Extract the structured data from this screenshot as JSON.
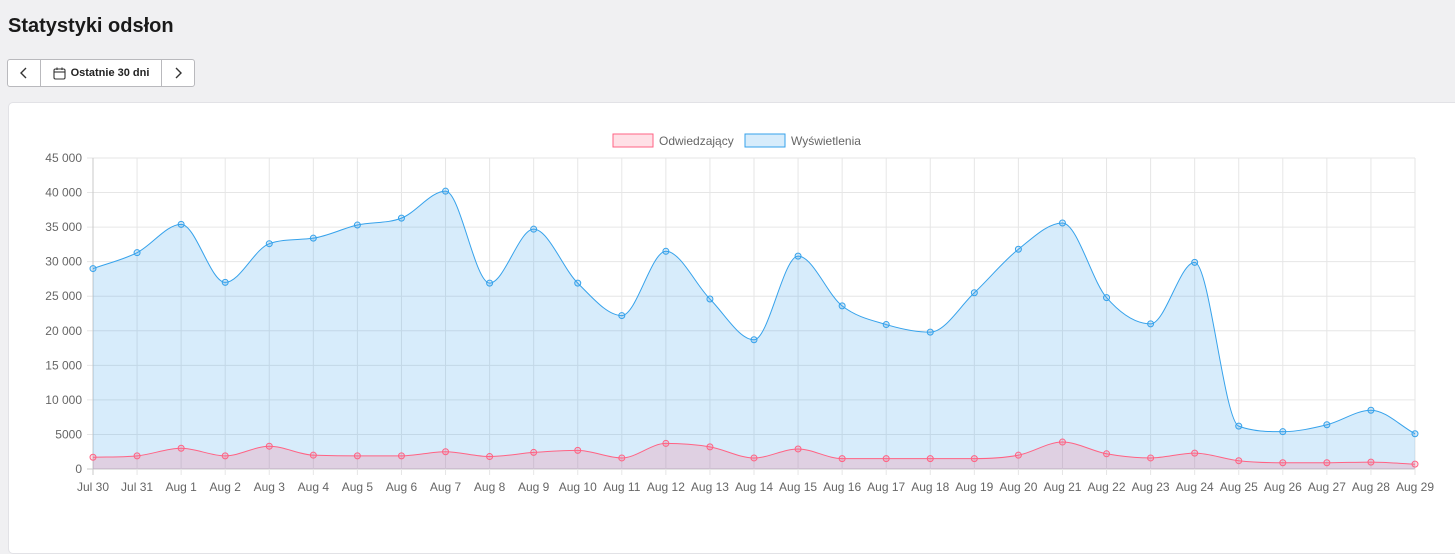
{
  "header": {
    "title": "Statystyki odsłon"
  },
  "range": {
    "label": "Ostatnie 30 dni",
    "prev_icon": "chevron-left-icon",
    "next_icon": "chevron-right-icon",
    "calendar_icon": "calendar-icon"
  },
  "chart_data": {
    "type": "line",
    "title": "",
    "xlabel": "",
    "ylabel": "",
    "legend_position": "top-center",
    "grid": true,
    "ylim": [
      0,
      45000
    ],
    "yticks": [
      0,
      5000,
      10000,
      15000,
      20000,
      25000,
      30000,
      35000,
      40000,
      45000
    ],
    "ytick_labels": [
      "0",
      "5000",
      "10 000",
      "15 000",
      "20 000",
      "25 000",
      "30 000",
      "35 000",
      "40 000",
      "45 000"
    ],
    "categories": [
      "Jul 30",
      "Jul 31",
      "Aug 1",
      "Aug 2",
      "Aug 3",
      "Aug 4",
      "Aug 5",
      "Aug 6",
      "Aug 7",
      "Aug 8",
      "Aug 9",
      "Aug 10",
      "Aug 11",
      "Aug 12",
      "Aug 13",
      "Aug 14",
      "Aug 15",
      "Aug 16",
      "Aug 17",
      "Aug 18",
      "Aug 19",
      "Aug 20",
      "Aug 21",
      "Aug 22",
      "Aug 23",
      "Aug 24",
      "Aug 25",
      "Aug 26",
      "Aug 27",
      "Aug 28",
      "Aug 29"
    ],
    "series": [
      {
        "name": "Odwiedzający",
        "color": "#ff6384",
        "fill": "rgba(255,99,132,0.2)",
        "values": [
          1700,
          1900,
          3000,
          1900,
          3300,
          2000,
          1900,
          1900,
          2500,
          1800,
          2400,
          2700,
          1600,
          3700,
          3200,
          1600,
          2900,
          1500,
          1500,
          1500,
          1500,
          2000,
          3900,
          2200,
          1600,
          2300,
          1200,
          900,
          900,
          1000,
          700
        ]
      },
      {
        "name": "Wyświetlenia",
        "color": "#36a2eb",
        "fill": "rgba(54,162,235,0.2)",
        "values": [
          29000,
          31300,
          35400,
          27000,
          32600,
          33400,
          35300,
          36300,
          40200,
          26900,
          34700,
          26900,
          22200,
          31500,
          24600,
          18700,
          30800,
          23600,
          20900,
          19800,
          25500,
          31800,
          35600,
          24800,
          21000,
          29900,
          6200,
          5400,
          6400,
          8500,
          5100
        ]
      }
    ]
  }
}
